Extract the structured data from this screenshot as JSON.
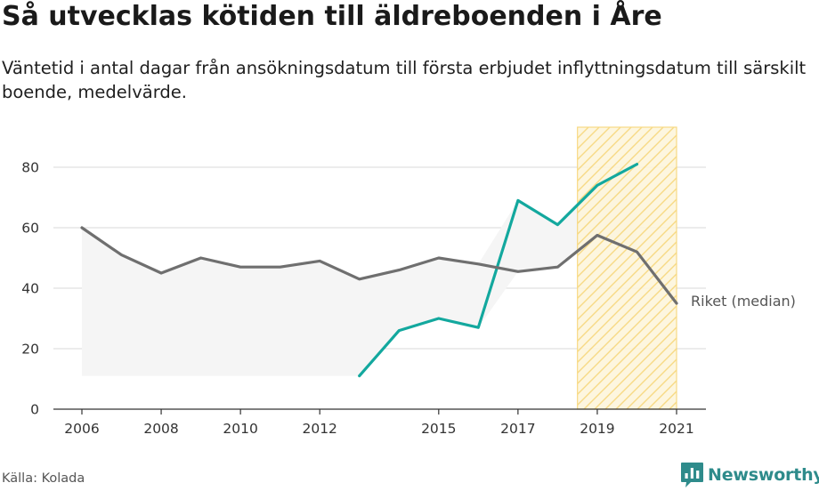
{
  "title": "Så utvecklas kötiden till äldreboenden i Åre",
  "subtitle": "Väntetid i antal dagar från ansökningsdatum till första erbjudet inflyttningsdatum till särskilt boende, medelvärde.",
  "source": "Källa: Kolada",
  "brand": {
    "name": "Newsworthy",
    "icon": "newsworthy-logo-icon"
  },
  "colors": {
    "are": "#13a89e",
    "riket": "#6f6f6f",
    "band": "#f5f5f5",
    "highlight_fill": "#fdf6dc",
    "highlight_stroke": "#f7d678",
    "grid": "#d9d9d9"
  },
  "chart_data": {
    "type": "line",
    "x_ticks": [
      2006,
      2008,
      2010,
      2012,
      2015,
      2017,
      2019,
      2021
    ],
    "x_tick_labels": [
      "2006",
      "2008",
      "2010",
      "2012",
      "2015",
      "2017",
      "2019",
      "2021"
    ],
    "xlim": [
      2006,
      2021
    ],
    "ylim": [
      0,
      80
    ],
    "y_ticks": [
      0,
      20,
      40,
      60,
      80
    ],
    "y_tick_labels": [
      "0",
      "20",
      "40",
      "60",
      "80"
    ],
    "grid": "horizontal",
    "highlight_range": [
      2018.5,
      2021
    ],
    "series": [
      {
        "key": "are",
        "x": [
          2013,
          2014,
          2015,
          2016,
          2017,
          2018,
          2019,
          2020
        ],
        "values": [
          11,
          26,
          30,
          27,
          69,
          61,
          74,
          81
        ]
      },
      {
        "key": "riket",
        "name": "Riket (median)",
        "x": [
          2006,
          2007,
          2008,
          2009,
          2010,
          2011,
          2012,
          2013,
          2014,
          2015,
          2016,
          2017,
          2018,
          2019,
          2020,
          2021
        ],
        "values": [
          60,
          51,
          45,
          50,
          47,
          47,
          49,
          43,
          46,
          50,
          48,
          45.5,
          47,
          57.5,
          52,
          35
        ]
      }
    ],
    "band": {
      "x": [
        2006,
        2007,
        2008,
        2009,
        2010,
        2011,
        2012,
        2013,
        2014,
        2015,
        2016,
        2017,
        2018,
        2019,
        2020
      ],
      "lower": [
        11,
        11,
        11,
        11,
        11,
        11,
        11,
        11,
        26,
        30,
        27,
        45.5,
        47,
        57.5,
        52
      ],
      "upper": [
        60,
        51,
        45,
        50,
        47,
        47,
        49,
        43,
        46,
        50,
        48,
        69,
        61,
        74,
        81
      ]
    }
  }
}
